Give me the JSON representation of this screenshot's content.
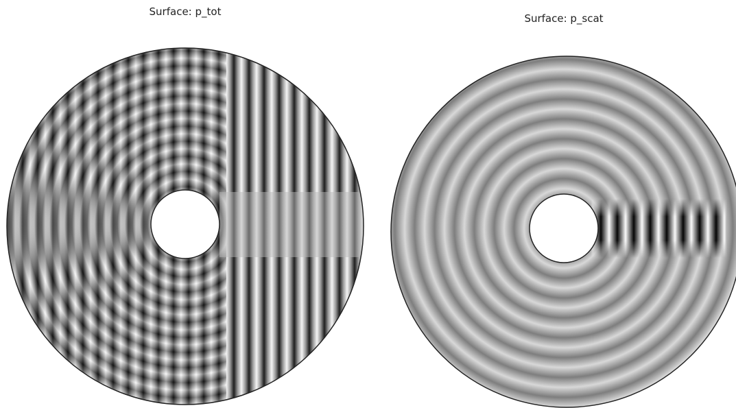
{
  "panels": [
    {
      "title": "Surface: p_tot"
    },
    {
      "title": "Surface: p_scat"
    }
  ]
}
